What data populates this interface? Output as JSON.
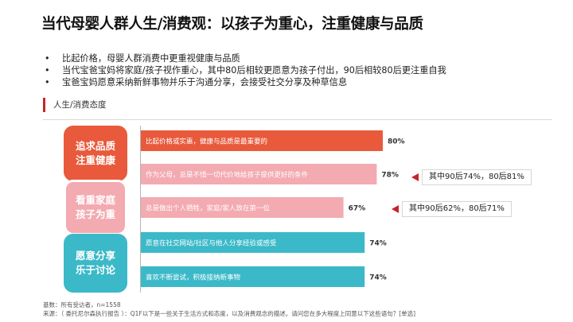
{
  "title": "当代母婴人群人生/消费观：以孩子为重心，注重健康与品质",
  "bullets": [
    "比起价格，母婴人群消费中更重视健康与品质",
    "当代宝爸宝妈将家庭/孩子视作重心，其中80后相较更愿意为孩子付出，90后相较80后更注重自我",
    "宝爸宝妈愿意采纳新鲜事物并乐于沟通分享，会接受社交分享及种草信息"
  ],
  "section_label": "人生/消费态度",
  "categories": [
    {
      "lines": [
        "追求品质",
        "注重健康"
      ]
    },
    {
      "lines": [
        "看重家庭",
        "孩子为重"
      ]
    },
    {
      "lines": [
        "愿意分享",
        "乐于讨论"
      ]
    }
  ],
  "callouts": [
    "其中90后74%，80后81%",
    "其中90后62%，80后71%"
  ],
  "colors": {
    "red": "#e85a3b",
    "pink": "#f3aab1",
    "teal": "#3bb9c8",
    "accent": "#c8242b"
  },
  "chart_data": {
    "type": "bar",
    "orientation": "horizontal",
    "categories": [
      "比起价格或实惠，健康与品质是最重要的",
      "作为父母，总是不惜一切代价地给孩子提供更好的条件",
      "总是做出个人牺牲，家庭/家人放在第一位",
      "愿意在社交网站/社区与他人分享经验或感受",
      "喜欢不断尝试，积极接纳新事物"
    ],
    "values": [
      80,
      78,
      67,
      74,
      74
    ],
    "value_labels": [
      "80%",
      "78%",
      "67%",
      "74%",
      "74%"
    ],
    "groups": [
      "追求品质 注重健康",
      "看重家庭 孩子为重",
      "看重家庭 孩子为重",
      "愿意分享 乐于讨论",
      "愿意分享 乐于讨论"
    ],
    "bar_colors": [
      "#e85a3b",
      "#f3aab1",
      "#f3aab1",
      "#3bb9c8",
      "#3bb9c8"
    ],
    "xlim": [
      0,
      100
    ],
    "grid": false,
    "legend": "none"
  },
  "footer": {
    "base": "基数：所有受访者，n=1558",
    "source": "来源：（ 委托尼尔森执行报告 ）：Q1F以下是一些关于生活方式和态度，以及消费观念的描述。请问您在多大程度上同意以下这些语句？[单选]"
  }
}
